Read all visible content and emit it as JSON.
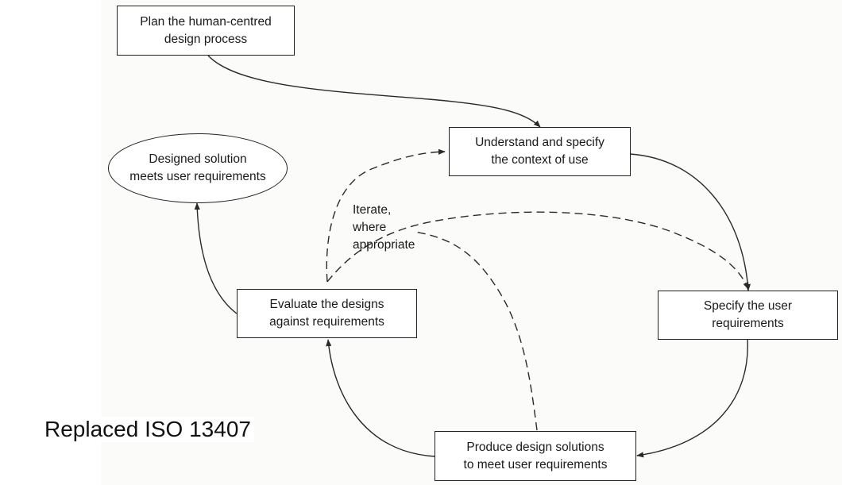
{
  "nodes": {
    "plan": "Plan the human-centred\ndesign process",
    "understand": "Understand and specify\nthe context of use",
    "specify": "Specify the user\nrequirements",
    "produce": "Produce design solutions\nto meet user requirements",
    "evaluate": "Evaluate the designs\nagainst requirements",
    "designed": "Designed solution\nmeets user requirements"
  },
  "iterate_label": "Iterate,\nwhere\nappropriate",
  "footnote": "Replaced ISO 13407",
  "colors": {
    "line": "#2a2a2a",
    "box_border": "#222222",
    "background": "#fbfbf9"
  }
}
